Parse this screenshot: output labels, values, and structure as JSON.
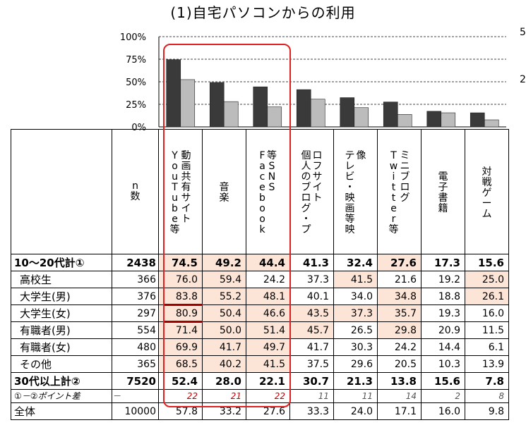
{
  "title": "(1)自宅パソコンからの利用",
  "side_labels": [
    "5",
    "2"
  ],
  "chart_data": {
    "type": "bar",
    "title": "(1)自宅パソコンからの利用",
    "categories": [
      "YouTube等動画共有サイト",
      "音楽",
      "Facebook等SNS",
      "個人のブログ・プロフサイト",
      "テレビ・映画等映像",
      "Twitter等ミニブログ",
      "電子書籍",
      "対戦ゲーム"
    ],
    "series": [
      {
        "values": [
          74.5,
          49.2,
          44.4,
          41.3,
          32.4,
          27.6,
          17.3,
          15.6
        ]
      },
      {
        "values": [
          52.4,
          28.0,
          22.1,
          30.7,
          21.3,
          13.8,
          15.6,
          7.8
        ]
      }
    ],
    "colors": [
      "#3a3a3a",
      "#bcbcbc"
    ],
    "ylim": [
      0,
      100
    ],
    "yticks": [
      "0%",
      "25%",
      "50%",
      "75%",
      "100%"
    ],
    "grid": true
  },
  "table": {
    "n_header": "n数",
    "headers": [
      {
        "cols": [
          "動画共有サイト",
          "YouTube等"
        ]
      },
      {
        "cols": [
          "音楽"
        ]
      },
      {
        "cols": [
          "等SNS",
          "Facebook"
        ]
      },
      {
        "cols": [
          "ロフサイト",
          "個人のブログ・プ"
        ]
      },
      {
        "cols": [
          "像",
          "テレビ・映画等映"
        ]
      },
      {
        "cols": [
          "ミニブログ",
          "Twitter等"
        ]
      },
      {
        "cols": [
          "電子書籍"
        ]
      },
      {
        "cols": [
          "対戦ゲーム"
        ]
      }
    ],
    "rows": [
      {
        "label": "10～20代計①",
        "n": "2438",
        "values": [
          "74.5",
          "49.2",
          "44.4",
          "41.3",
          "32.4",
          "27.6",
          "17.3",
          "15.6"
        ],
        "hl": [
          1,
          1,
          1,
          0,
          0,
          1,
          0,
          0
        ],
        "style": "bold"
      },
      {
        "label": "高校生",
        "n": "366",
        "values": [
          "76.0",
          "59.4",
          "24.2",
          "37.3",
          "41.5",
          "21.6",
          "19.2",
          "25.0"
        ],
        "hl": [
          1,
          1,
          0,
          0,
          1,
          0,
          0,
          1
        ],
        "style": "sub"
      },
      {
        "label": "大学生(男)",
        "n": "376",
        "values": [
          "83.8",
          "55.2",
          "48.1",
          "40.1",
          "34.0",
          "34.8",
          "18.8",
          "26.1"
        ],
        "hl": [
          1,
          1,
          1,
          0,
          0,
          1,
          0,
          1
        ],
        "style": "sub"
      },
      {
        "label": "大学生(女)",
        "n": "297",
        "values": [
          "80.9",
          "50.4",
          "46.6",
          "43.5",
          "37.3",
          "35.7",
          "19.3",
          "16.0"
        ],
        "hl": [
          1,
          1,
          1,
          1,
          1,
          1,
          0,
          0
        ],
        "style": "sub"
      },
      {
        "label": "有職者(男)",
        "n": "554",
        "values": [
          "71.4",
          "50.0",
          "51.4",
          "45.7",
          "26.5",
          "29.8",
          "20.9",
          "11.5"
        ],
        "hl": [
          1,
          1,
          1,
          1,
          0,
          1,
          0,
          0
        ],
        "style": "sub"
      },
      {
        "label": "有職者(女)",
        "n": "480",
        "values": [
          "69.9",
          "41.7",
          "49.7",
          "41.7",
          "30.3",
          "24.2",
          "14.4",
          "6.1"
        ],
        "hl": [
          1,
          1,
          1,
          0,
          0,
          0,
          0,
          0
        ],
        "style": "sub"
      },
      {
        "label": "その他",
        "n": "365",
        "values": [
          "68.5",
          "40.2",
          "41.5",
          "37.5",
          "29.6",
          "20.5",
          "10.3",
          "13.9"
        ],
        "hl": [
          1,
          1,
          1,
          0,
          0,
          0,
          0,
          0
        ],
        "style": "sub"
      },
      {
        "label": "30代以上計②",
        "n": "7520",
        "values": [
          "52.4",
          "28.0",
          "22.1",
          "30.7",
          "21.3",
          "13.8",
          "15.6",
          "7.8"
        ],
        "hl": [
          0,
          0,
          0,
          0,
          0,
          0,
          0,
          0
        ],
        "style": "bold"
      },
      {
        "label": "①－②ポイント差",
        "n": "－",
        "values": [
          "22",
          "21",
          "22",
          "11",
          "11",
          "14",
          "2",
          "8"
        ],
        "hl": [
          0,
          0,
          0,
          0,
          0,
          0,
          0,
          0
        ],
        "style": "diff"
      },
      {
        "label": "全体",
        "n": "10000",
        "values": [
          "57.8",
          "33.2",
          "27.6",
          "33.3",
          "24.0",
          "17.1",
          "16.0",
          "9.8"
        ],
        "hl": [
          0,
          0,
          0,
          0,
          0,
          0,
          0,
          0
        ],
        "style": "plain"
      }
    ]
  }
}
